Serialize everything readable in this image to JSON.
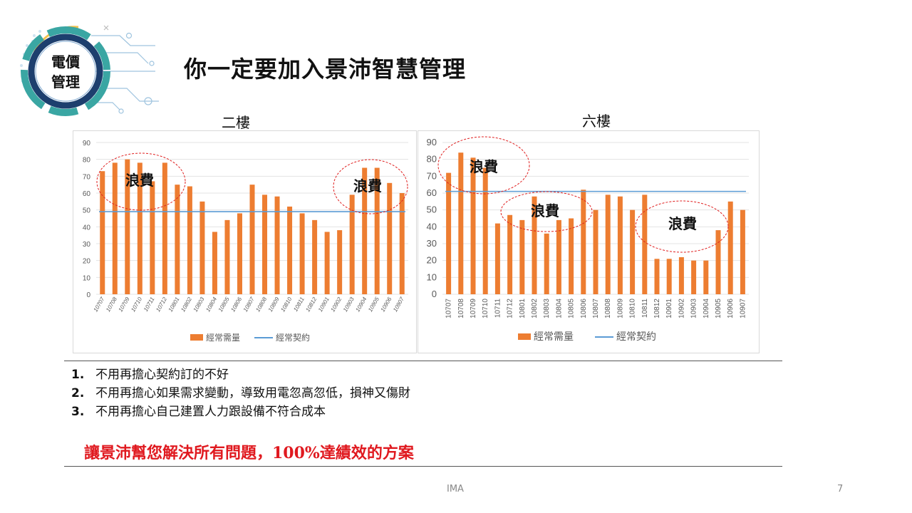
{
  "logo": {
    "line1": "電價",
    "line2": "管理"
  },
  "title": "你一定要加入景沛智慧管理",
  "colors": {
    "bar": "#ed7d31",
    "contract": "#5b9bd5",
    "annotation": "#e02020",
    "cta": "#e0191f"
  },
  "chart_data": [
    {
      "type": "bar",
      "title": "二樓",
      "categories": [
        "10707",
        "10708",
        "10709",
        "10710",
        "10711",
        "10712",
        "10801",
        "10802",
        "10803",
        "10804",
        "10805",
        "10806",
        "10807",
        "10808",
        "10809",
        "10810",
        "10811",
        "10812",
        "10901",
        "10902",
        "10903",
        "10904",
        "10905",
        "10906",
        "10907"
      ],
      "series": [
        {
          "name": "經常需量",
          "type": "bar",
          "values": [
            73,
            78,
            80,
            78,
            67,
            78,
            65,
            64,
            55,
            37,
            44,
            48,
            65,
            59,
            58,
            52,
            48,
            44,
            37,
            38,
            59,
            75,
            75,
            66,
            60
          ]
        },
        {
          "name": "經常契約",
          "type": "line",
          "values": [
            49,
            49,
            49,
            49,
            49,
            49,
            49,
            49,
            49,
            49,
            49,
            49,
            49,
            49,
            49,
            49,
            49,
            49,
            49,
            49,
            49,
            49,
            49,
            49,
            49
          ]
        }
      ],
      "yticks": [
        "0",
        "10",
        "20",
        "30",
        "40",
        "50",
        "60",
        "70",
        "80",
        "90"
      ],
      "ylim": [
        0,
        90
      ],
      "legend": "bottom",
      "annotations": [
        {
          "text": "浪費",
          "from": "10707",
          "to": "10712"
        },
        {
          "text": "浪費",
          "from": "10903",
          "to": "10907"
        }
      ]
    },
    {
      "type": "bar",
      "title": "六樓",
      "categories": [
        "10707",
        "10708",
        "10709",
        "10710",
        "10711",
        "10712",
        "10801",
        "10802",
        "10803",
        "10804",
        "10805",
        "10806",
        "10807",
        "10808",
        "10809",
        "10810",
        "10811",
        "10812",
        "10901",
        "10902",
        "10903",
        "10904",
        "10905",
        "10906",
        "10907"
      ],
      "series": [
        {
          "name": "經常需量",
          "type": "bar",
          "values": [
            72,
            84,
            81,
            75,
            42,
            47,
            44,
            58,
            36,
            44,
            45,
            62,
            50,
            59,
            58,
            50,
            59,
            21,
            21,
            22,
            20,
            20,
            38,
            55,
            50
          ]
        },
        {
          "name": "經常契約",
          "type": "line",
          "values": [
            61,
            61,
            61,
            61,
            61,
            61,
            61,
            61,
            61,
            61,
            61,
            61,
            61,
            61,
            61,
            61,
            61,
            61,
            61,
            61,
            61,
            61,
            61,
            61,
            61
          ]
        }
      ],
      "yticks": [
        "0",
        "10",
        "20",
        "30",
        "40",
        "50",
        "60",
        "70",
        "80",
        "90"
      ],
      "ylim": [
        0,
        90
      ],
      "legend": "bottom",
      "annotations": [
        {
          "text": "浪費",
          "from": "10707",
          "to": "10710"
        },
        {
          "text": "浪費",
          "from": "10801",
          "to": "10806"
        },
        {
          "text": "浪費",
          "from": "10812",
          "to": "10906"
        }
      ]
    }
  ],
  "points": [
    {
      "num": "1.",
      "text": "不用再擔心契約訂的不好"
    },
    {
      "num": "2.",
      "text": "不用再擔心如果需求變動，導致用電忽高忽低，損神又傷財"
    },
    {
      "num": "3.",
      "text": "不用再擔心自己建置人力跟設備不符合成本"
    }
  ],
  "cta": "讓景沛幫您解決所有問題，100%達績效的方案",
  "footer": {
    "left": "IMA",
    "page": "7"
  }
}
